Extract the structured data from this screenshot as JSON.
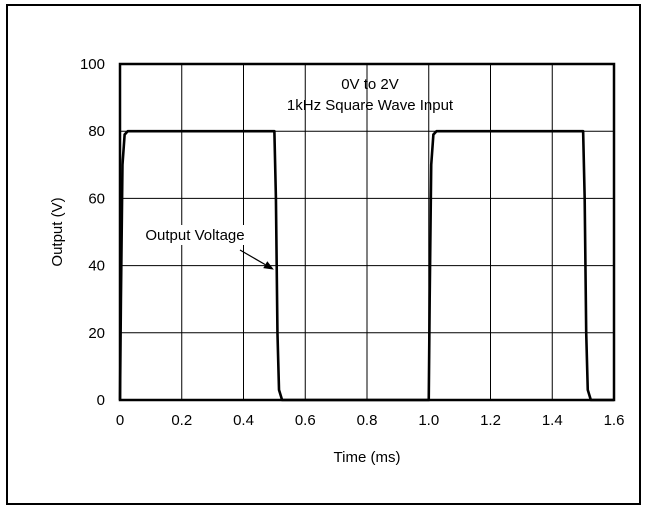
{
  "chart_data": {
    "type": "line",
    "title": "",
    "xlabel": "Time (ms)",
    "ylabel": "Output (V)",
    "xlim": [
      0,
      1.6
    ],
    "ylim": [
      0,
      100
    ],
    "x_ticks": [
      "0",
      "0.2",
      "0.4",
      "0.6",
      "0.8",
      "1.0",
      "1.2",
      "1.4",
      "1.6"
    ],
    "y_ticks": [
      "0",
      "20",
      "40",
      "60",
      "80",
      "100"
    ],
    "grid": true,
    "legend": "none",
    "series": [
      {
        "name": "Output Voltage",
        "color": "#000000",
        "points": [
          [
            0.0,
            0
          ],
          [
            0.003,
            30
          ],
          [
            0.008,
            70
          ],
          [
            0.015,
            79
          ],
          [
            0.025,
            80
          ],
          [
            0.5,
            80
          ],
          [
            0.505,
            60
          ],
          [
            0.51,
            20
          ],
          [
            0.515,
            3
          ],
          [
            0.525,
            0
          ],
          [
            1.0,
            0
          ],
          [
            1.003,
            30
          ],
          [
            1.008,
            70
          ],
          [
            1.015,
            79
          ],
          [
            1.025,
            80
          ],
          [
            1.5,
            80
          ],
          [
            1.505,
            60
          ],
          [
            1.51,
            20
          ],
          [
            1.515,
            3
          ],
          [
            1.525,
            0
          ],
          [
            1.6,
            0
          ]
        ]
      }
    ],
    "annotations": [
      {
        "id": "input",
        "lines": [
          "0V to 2V",
          "1kHz Square Wave Input"
        ]
      },
      {
        "id": "output",
        "text": "Output Voltage",
        "arrow_to": [
          0.505,
          37
        ]
      }
    ]
  }
}
